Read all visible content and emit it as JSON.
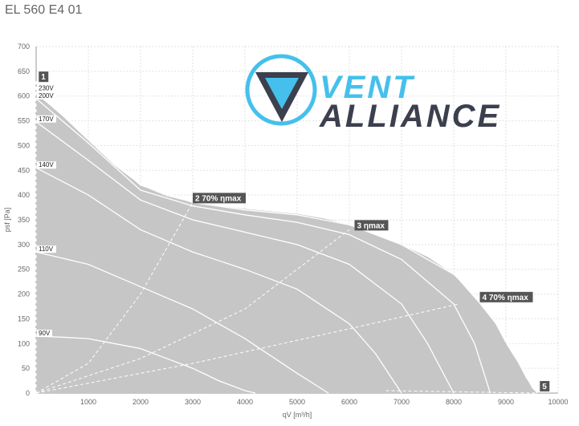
{
  "title": "EL 560 E4 01",
  "chart_data": {
    "type": "area",
    "xlabel": "qV [m³/h]",
    "ylabel": "psf [Pa]",
    "xlim": [
      0,
      10000
    ],
    "ylim": [
      0,
      700
    ],
    "x_ticks": [
      "1000",
      "2000",
      "3000",
      "4000",
      "5000",
      "6000",
      "7000",
      "8000",
      "9000",
      "10000"
    ],
    "y_ticks": [
      "0",
      "50",
      "100",
      "150",
      "200",
      "250",
      "300",
      "350",
      "400",
      "450",
      "500",
      "550",
      "600",
      "650",
      "700"
    ],
    "grid": true,
    "envelope": {
      "x": [
        0,
        500,
        1000,
        1500,
        2000,
        2500,
        3000,
        3500,
        4000,
        4500,
        5000,
        5500,
        6000,
        6500,
        7000,
        7500,
        8000,
        8500,
        8800,
        9000,
        9300,
        9500,
        9600
      ],
      "y": [
        605,
        560,
        510,
        460,
        420,
        398,
        385,
        378,
        372,
        367,
        362,
        353,
        340,
        320,
        300,
        275,
        240,
        180,
        140,
        100,
        50,
        10,
        0
      ]
    },
    "series": [
      {
        "name": "230V",
        "x": [
          0,
          1000,
          2000,
          3000,
          4000,
          5000,
          6000,
          7000,
          8000,
          8600,
          9000,
          9400,
          9600
        ],
        "y": [
          610,
          515,
          420,
          385,
          370,
          360,
          340,
          300,
          240,
          180,
          110,
          30,
          0
        ]
      },
      {
        "name": "200V",
        "x": [
          0,
          1000,
          2000,
          3000,
          4000,
          5000,
          6000,
          7000,
          8000,
          8400,
          8700
        ],
        "y": [
          595,
          505,
          410,
          378,
          360,
          345,
          320,
          270,
          180,
          100,
          0
        ]
      },
      {
        "name": "170V",
        "x": [
          0,
          1000,
          2000,
          3000,
          4000,
          5000,
          6000,
          7000,
          7500,
          8000
        ],
        "y": [
          548,
          470,
          390,
          350,
          325,
          300,
          260,
          180,
          100,
          0
        ]
      },
      {
        "name": "140V",
        "x": [
          0,
          1000,
          2000,
          3000,
          4000,
          5000,
          6000,
          6500,
          7000
        ],
        "y": [
          455,
          400,
          330,
          285,
          250,
          210,
          140,
          80,
          0
        ]
      },
      {
        "name": "110V",
        "x": [
          0,
          1000,
          2000,
          3000,
          4000,
          5000,
          5600
        ],
        "y": [
          285,
          260,
          215,
          170,
          110,
          40,
          0
        ]
      },
      {
        "name": "90V",
        "x": [
          0,
          500,
          1000,
          1500,
          2000,
          2500,
          3000,
          3500,
          4000,
          4200
        ],
        "y": [
          115,
          113,
          110,
          100,
          90,
          70,
          50,
          25,
          5,
          0
        ]
      }
    ],
    "efficiency_lines": [
      {
        "label": "1",
        "x": [
          0,
          0
        ],
        "y": [
          0,
          630
        ]
      },
      {
        "label": "2 70% ηmax",
        "x": [
          0,
          1000,
          2000,
          3000
        ],
        "y": [
          0,
          60,
          200,
          385
        ]
      },
      {
        "label": "3 ηmax",
        "x": [
          0,
          2000,
          4000,
          6000
        ],
        "y": [
          0,
          70,
          170,
          330
        ]
      },
      {
        "label": "4 70% ηmax",
        "x": [
          0,
          3000,
          6000,
          8100
        ],
        "y": [
          0,
          60,
          130,
          180
        ]
      },
      {
        "label": "5",
        "x": [
          6700,
          9600
        ],
        "y": [
          5,
          0
        ]
      }
    ],
    "annotations": [
      {
        "text": "1",
        "x": 50,
        "y": 630
      },
      {
        "text": "2 70% ηmax",
        "x": 3000,
        "y": 385
      },
      {
        "text": "3 ηmax",
        "x": 6100,
        "y": 330
      },
      {
        "text": "4 70% ηmax",
        "x": 8500,
        "y": 185
      },
      {
        "text": "5",
        "x": 9650,
        "y": 5
      }
    ],
    "colors": {
      "fill": "#c6c6c6",
      "curve": "#ffffff",
      "grid": "#e2e2e2",
      "label_bg": "#555555"
    }
  },
  "logo": {
    "line1": "VENT",
    "line2": "ALLIANCE",
    "color_primary": "#45c0ec",
    "color_dark": "#3c3f4d"
  }
}
